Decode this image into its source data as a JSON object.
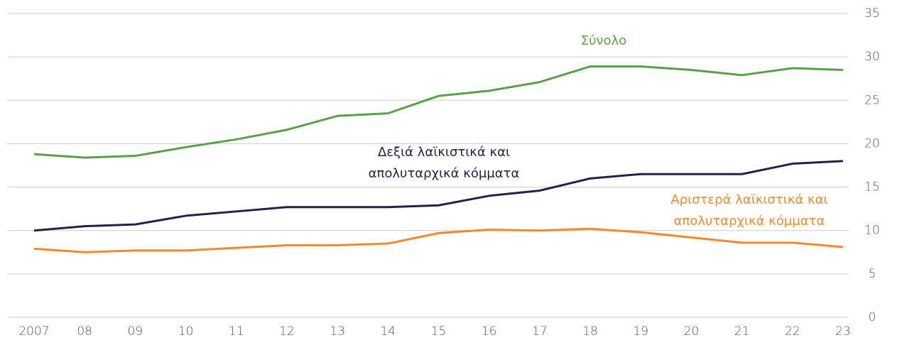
{
  "chart_data": {
    "type": "line",
    "categories": [
      "2007",
      "08",
      "09",
      "10",
      "11",
      "12",
      "13",
      "14",
      "15",
      "16",
      "17",
      "18",
      "19",
      "20",
      "21",
      "22",
      "23"
    ],
    "series": [
      {
        "name": "Σύνολο",
        "color": "#5aa04a",
        "values": [
          18.8,
          18.4,
          18.6,
          19.6,
          20.5,
          21.6,
          23.2,
          23.5,
          25.5,
          26.1,
          27.1,
          28.9,
          28.9,
          28.5,
          27.9,
          28.7,
          28.5
        ]
      },
      {
        "name": "Δεξιά λαϊκιστικά και απολυταρχικά κόμματα",
        "color": "#24224a",
        "values": [
          10.0,
          10.5,
          10.7,
          11.7,
          12.2,
          12.7,
          12.7,
          12.7,
          12.9,
          14.0,
          14.6,
          16.0,
          16.5,
          16.5,
          16.5,
          17.7,
          18.0
        ]
      },
      {
        "name": "Αριστερά λαϊκιστικά και απολυταρχικά κόμματα",
        "color": "#f08a2c",
        "values": [
          7.9,
          7.5,
          7.7,
          7.7,
          8.0,
          8.3,
          8.3,
          8.5,
          9.7,
          10.1,
          10.0,
          10.2,
          9.8,
          9.2,
          8.6,
          8.6,
          8.1
        ]
      }
    ],
    "ylim": [
      0,
      35
    ],
    "yticks": [
      0,
      5,
      10,
      15,
      20,
      25,
      30,
      35
    ],
    "grid": true,
    "y_axis_side": "right"
  }
}
